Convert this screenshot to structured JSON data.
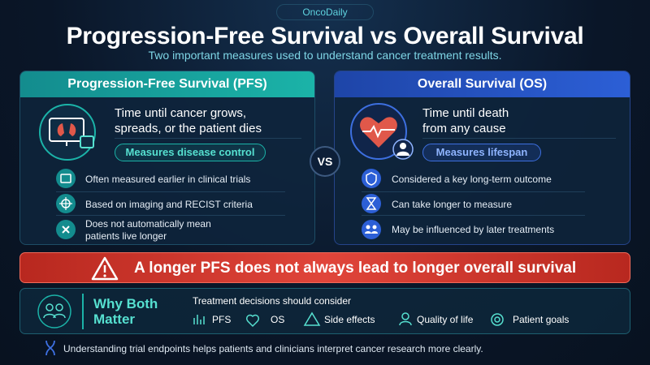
{
  "brand": "OncoDaily",
  "title": "Progression-Free Survival vs Overall Survival",
  "subtitle": "Two important measures used to understand cancer treatment results.",
  "pfs": {
    "heading": "Progression-Free Survival (PFS)",
    "definition": [
      "Time until cancer grows,",
      "spreads, or the patient dies"
    ],
    "badge": "Measures disease control",
    "points": [
      [
        "Often measured earlier in clinical trials"
      ],
      [
        "Based on imaging and RECIST criteria"
      ],
      [
        "Does not automatically mean",
        "patients live longer"
      ]
    ]
  },
  "vs": "VS",
  "os": {
    "heading": "Overall Survival (OS)",
    "definition": [
      "Time until death",
      "from any cause"
    ],
    "badge": "Measures lifespan",
    "points": [
      [
        "Considered a key long-term outcome"
      ],
      [
        "Can take longer to measure"
      ],
      [
        "May be influenced by later treatments"
      ]
    ]
  },
  "warning": "A longer PFS does not always lead to longer overall survival",
  "why": {
    "heading": [
      "Why Both",
      "Matter"
    ],
    "intro": "Treatment decisions should consider",
    "factors": [
      "PFS",
      "OS",
      "Side effects",
      "Quality of life",
      "Patient goals"
    ]
  },
  "footer": "Understanding trial endpoints helps patients and clinicians interpret cancer research more clearly."
}
